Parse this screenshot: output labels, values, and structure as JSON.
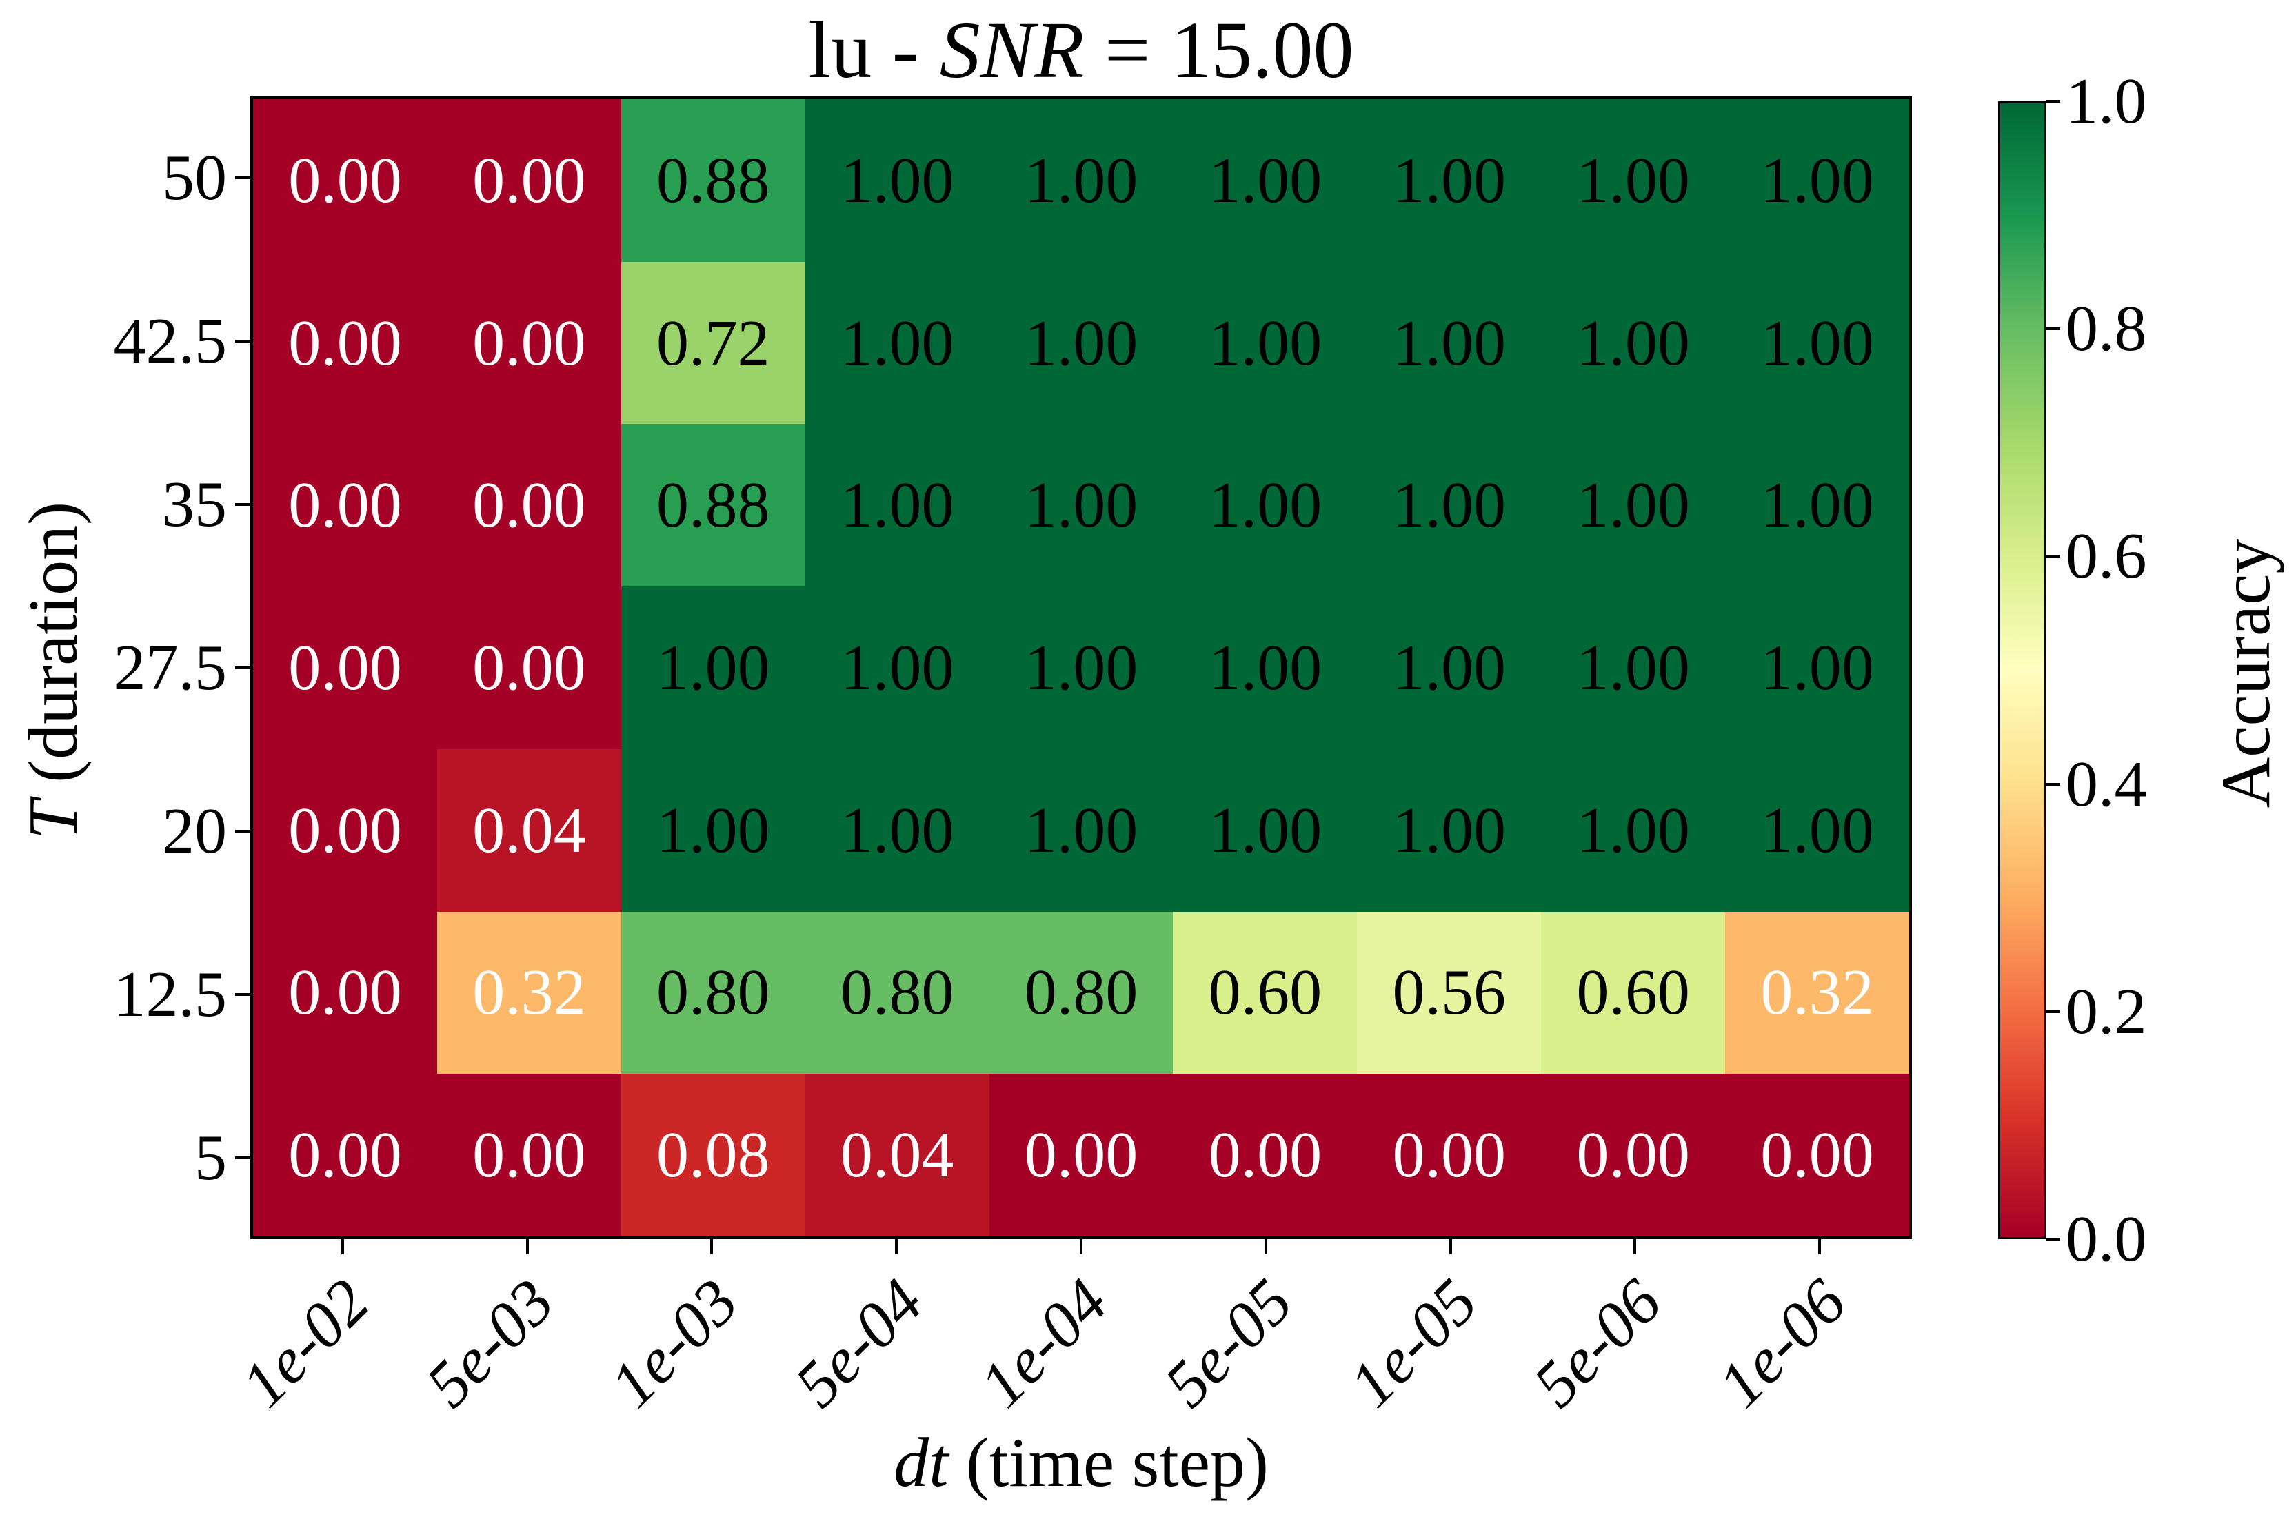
{
  "chart_data": {
    "type": "heatmap",
    "title": "lu - SNR = 15.00",
    "title_parts": {
      "prefix": "lu - ",
      "var": "SNR",
      "rest": " = 15.00"
    },
    "xlabel": "dt (time step)",
    "xlabel_var": "dt",
    "xlabel_rest": " (time step)",
    "ylabel": "T (duration)",
    "ylabel_var": "T",
    "ylabel_rest": " (duration)",
    "x_ticklabels": [
      "1e-02",
      "5e-03",
      "1e-03",
      "5e-04",
      "1e-04",
      "5e-05",
      "1e-05",
      "5e-06",
      "1e-06"
    ],
    "y_ticklabels": [
      "50",
      "42.5",
      "35",
      "27.5",
      "20",
      "12.5",
      "5"
    ],
    "values": [
      [
        0.0,
        0.0,
        0.88,
        1.0,
        1.0,
        1.0,
        1.0,
        1.0,
        1.0
      ],
      [
        0.0,
        0.0,
        0.72,
        1.0,
        1.0,
        1.0,
        1.0,
        1.0,
        1.0
      ],
      [
        0.0,
        0.0,
        0.88,
        1.0,
        1.0,
        1.0,
        1.0,
        1.0,
        1.0
      ],
      [
        0.0,
        0.0,
        1.0,
        1.0,
        1.0,
        1.0,
        1.0,
        1.0,
        1.0
      ],
      [
        0.0,
        0.04,
        1.0,
        1.0,
        1.0,
        1.0,
        1.0,
        1.0,
        1.0
      ],
      [
        0.0,
        0.32,
        0.8,
        0.8,
        0.8,
        0.6,
        0.56,
        0.6,
        0.32
      ],
      [
        0.0,
        0.0,
        0.08,
        0.04,
        0.0,
        0.0,
        0.0,
        0.0,
        0.0
      ]
    ],
    "value_format_decimals": 2,
    "colorbar": {
      "label": "Accuracy",
      "tick_labels": [
        "1.0",
        "0.8",
        "0.6",
        "0.4",
        "0.2",
        "0.0"
      ],
      "vmin": 0.0,
      "vmax": 1.0
    },
    "colormap": {
      "name": "RdYlGn",
      "stops": [
        "#a50026",
        "#d73027",
        "#f46d43",
        "#fdae61",
        "#fee08b",
        "#ffffbf",
        "#d9ef8b",
        "#a6d96a",
        "#66bd63",
        "#1a9850",
        "#006837"
      ]
    },
    "cell_text_light": "#ffffff",
    "cell_text_dark": "#000000",
    "text_color_threshold": 0.5,
    "spine_color": "#000000",
    "grid": false,
    "legend_position": "right-colorbar"
  }
}
